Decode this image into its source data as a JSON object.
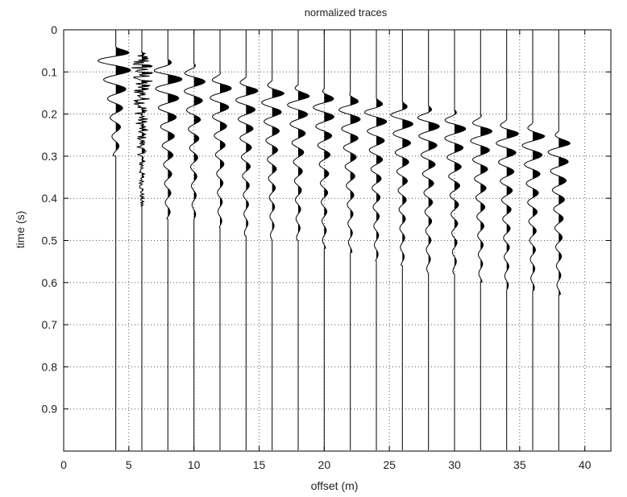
{
  "chart_data": {
    "type": "line",
    "subtype": "seismic-wiggle",
    "title": "normalized traces",
    "xlabel": "offset (m)",
    "ylabel": "time (s)",
    "xlim": [
      0,
      42
    ],
    "ylim": [
      0,
      1.0
    ],
    "y_reversed": true,
    "grid": true,
    "fill_positive": true,
    "xticks": [
      0,
      5,
      10,
      15,
      20,
      25,
      30,
      35,
      40
    ],
    "xtick_labels": [
      "0",
      "5",
      "10",
      "15",
      "20",
      "25",
      "30",
      "35",
      "40"
    ],
    "yticks": [
      0,
      0.1,
      0.2,
      0.3,
      0.4,
      0.5,
      0.6,
      0.7,
      0.8,
      0.9
    ],
    "ytick_labels": [
      "0",
      "0.1",
      "0.2",
      "0.3",
      "0.4",
      "0.5",
      "0.6",
      "0.7",
      "0.8",
      "0.9"
    ],
    "trace_offsets": [
      4,
      6,
      8,
      10,
      12,
      14,
      16,
      18,
      20,
      22,
      24,
      26,
      28,
      30,
      32,
      34,
      36,
      38
    ],
    "trace_first_arrival": [
      0.04,
      0.05,
      0.07,
      0.08,
      0.1,
      0.11,
      0.12,
      0.13,
      0.14,
      0.15,
      0.16,
      0.17,
      0.18,
      0.19,
      0.2,
      0.21,
      0.22,
      0.24
    ],
    "trace_signal_end": [
      0.3,
      0.42,
      0.45,
      0.45,
      0.47,
      0.49,
      0.5,
      0.5,
      0.52,
      0.53,
      0.55,
      0.56,
      0.58,
      0.58,
      0.6,
      0.62,
      0.62,
      0.63
    ]
  }
}
